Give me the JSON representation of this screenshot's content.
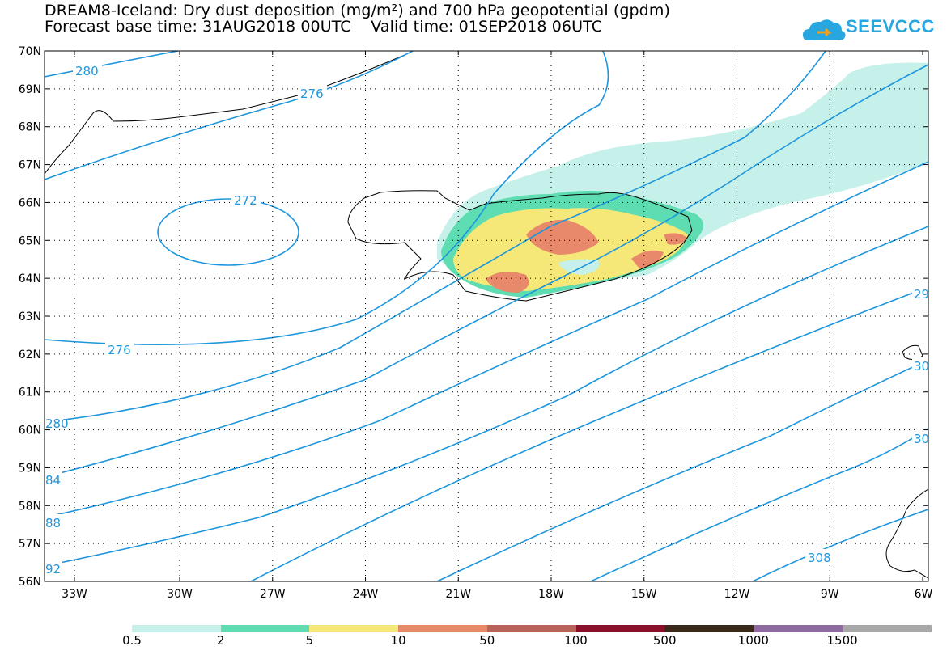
{
  "header": {
    "title_line1": "DREAM8-Iceland: Dry dust deposition (mg/m²) and 700 hPa geopotential (gpdm)",
    "title_line2": "Forecast base time: 31AUG2018 00UTC    Valid time: 01SEP2018 06UTC"
  },
  "logo": {
    "text": "SEEVCCC",
    "icon": "cloud-logo-icon",
    "color": "#27a6e0"
  },
  "axes": {
    "lat_labels": [
      "70N",
      "69N",
      "68N",
      "67N",
      "66N",
      "65N",
      "64N",
      "63N",
      "62N",
      "61N",
      "60N",
      "59N",
      "58N",
      "57N",
      "56N"
    ],
    "lon_labels": [
      "33W",
      "30W",
      "27W",
      "24W",
      "21W",
      "18W",
      "15W",
      "12W",
      "9W",
      "6W"
    ]
  },
  "contours": {
    "color": "#1e96dc",
    "labels": [
      "280",
      "276",
      "272",
      "276",
      "280",
      "84",
      "88",
      "92",
      "308",
      "29",
      "30",
      "30"
    ]
  },
  "legend": {
    "labels": [
      "0.5",
      "2",
      "5",
      "10",
      "50",
      "100",
      "500",
      "1000",
      "1500"
    ],
    "colors": [
      "#c6f1ea",
      "#5edcb2",
      "#f5e878",
      "#e8896b",
      "#b8625a",
      "#8b0f2a",
      "#3a2a1c",
      "#8e6aa0",
      "#a8a8a8"
    ]
  }
}
